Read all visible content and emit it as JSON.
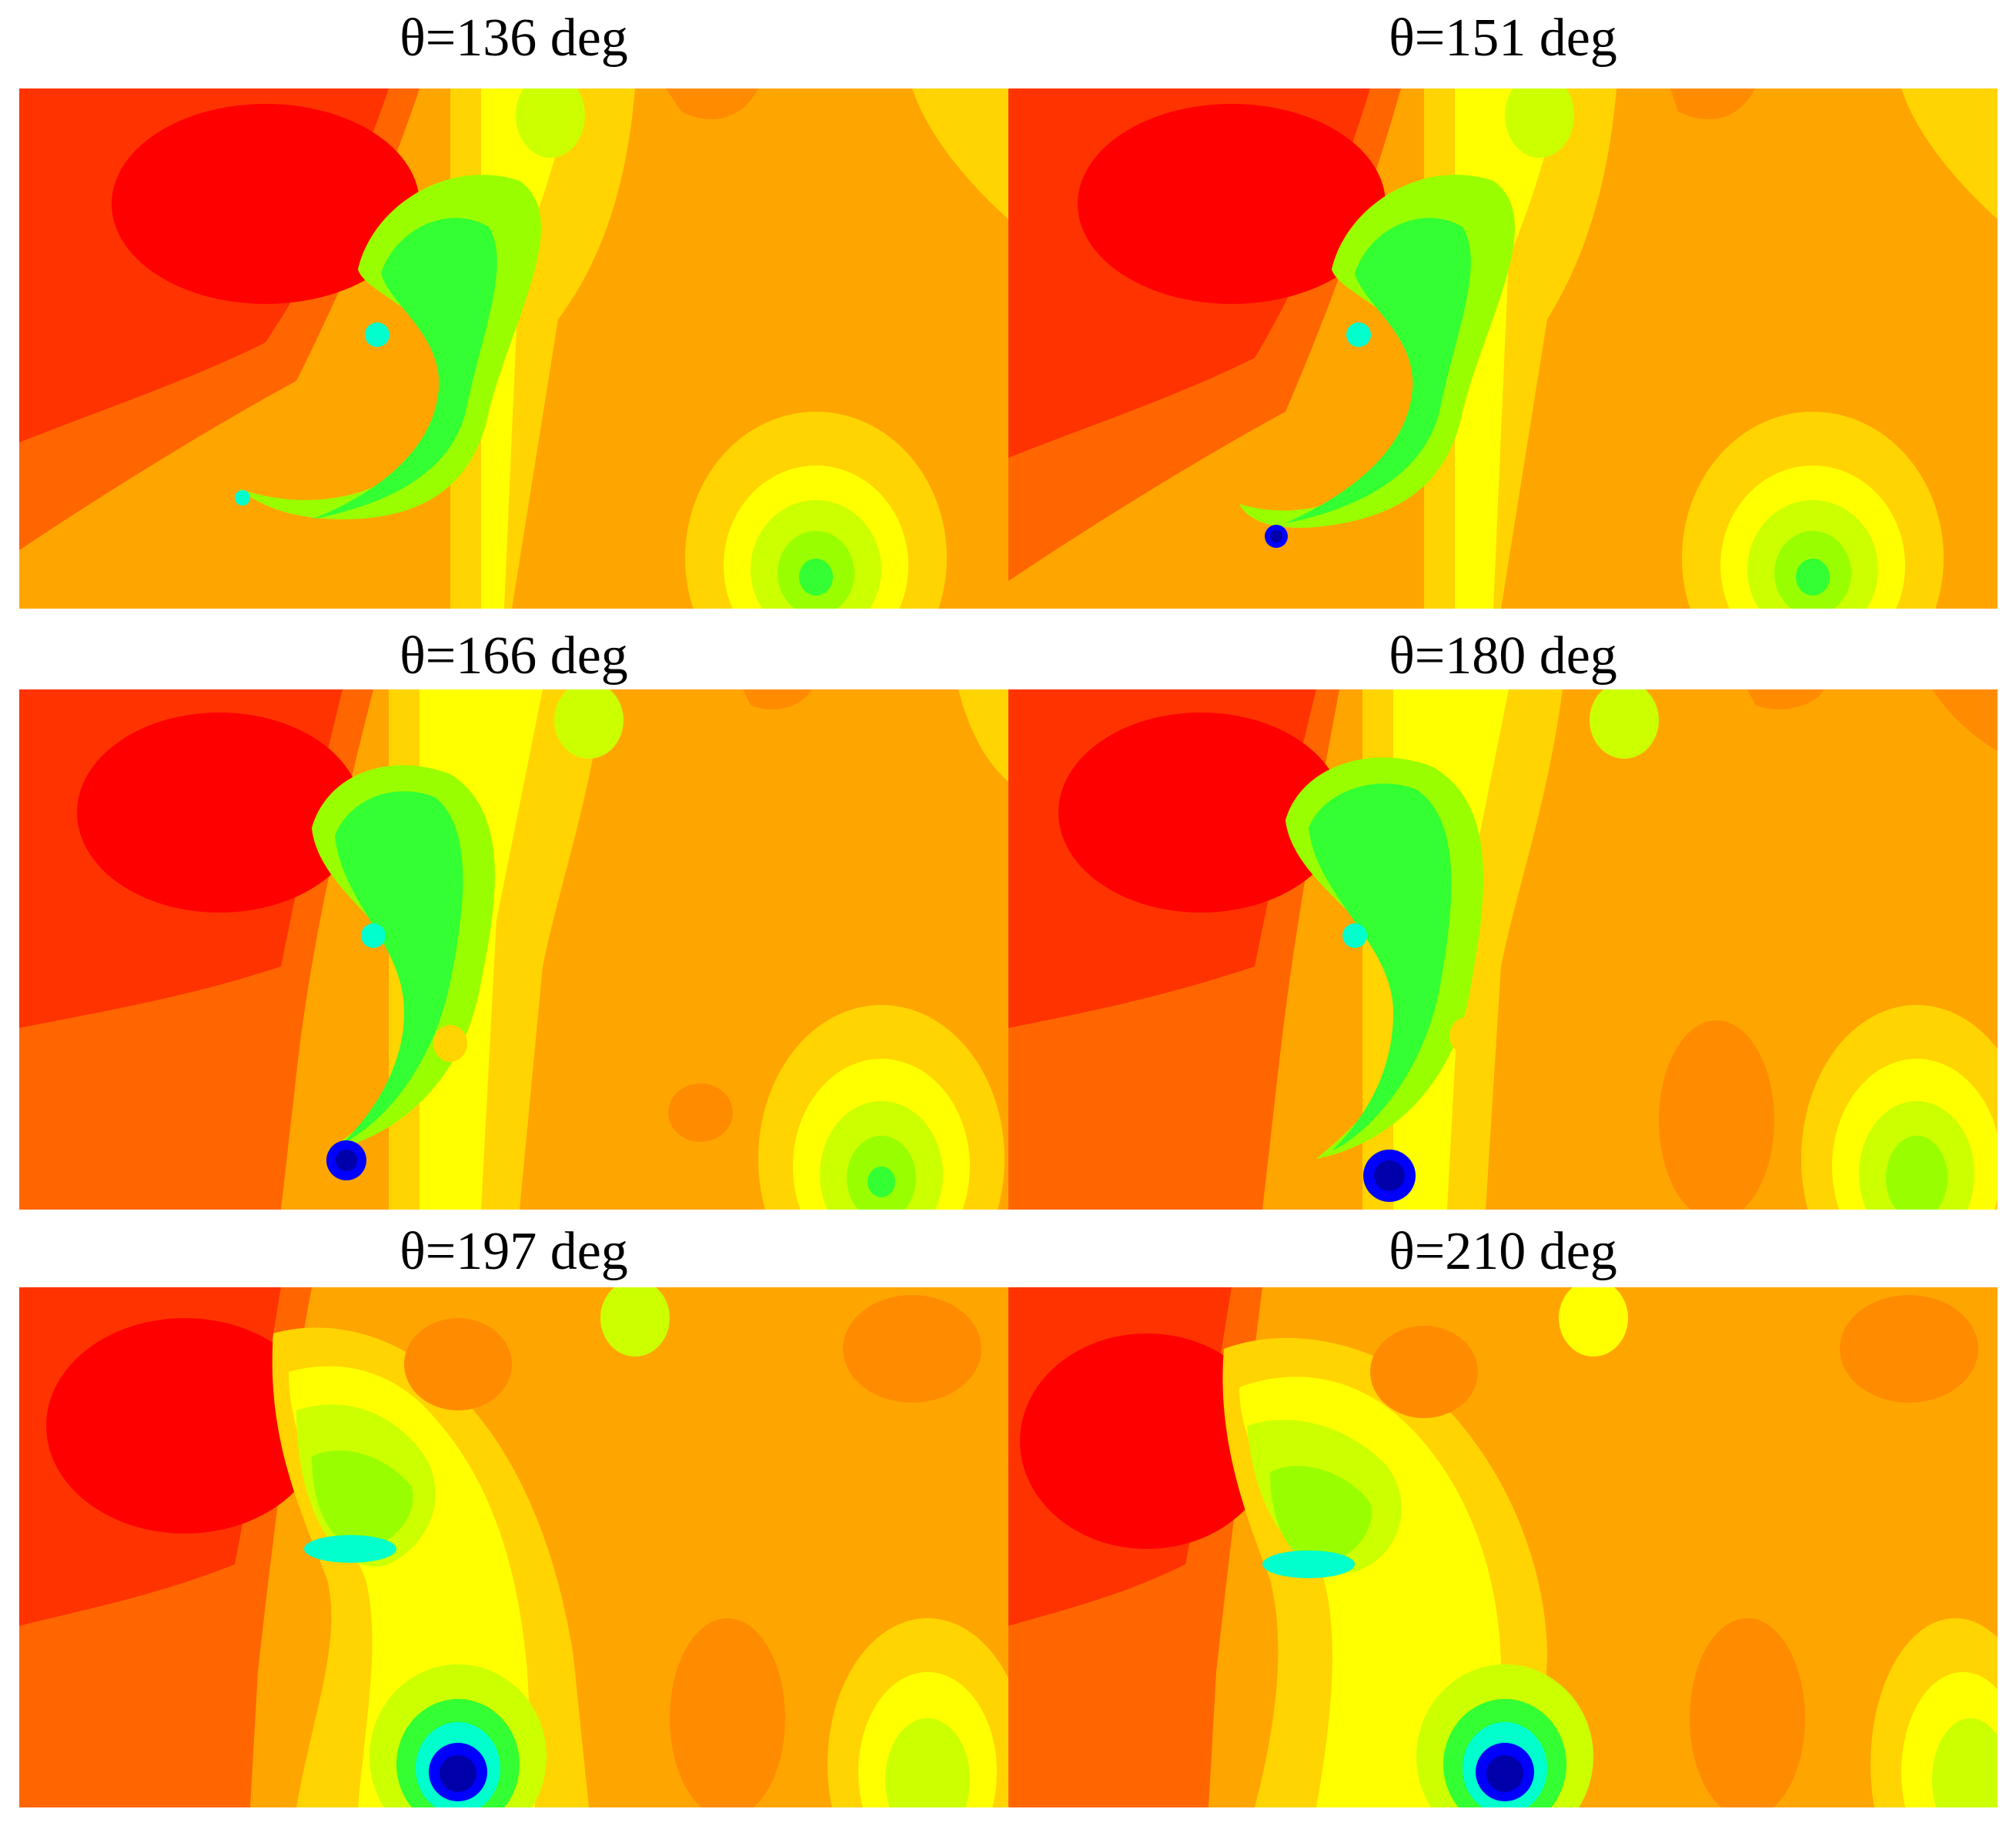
{
  "panels": [
    {
      "title": "θ=136 deg"
    },
    {
      "title": "θ=151 deg"
    },
    {
      "title": "θ=166 deg"
    },
    {
      "title": "θ=180 deg"
    },
    {
      "title": "θ=197 deg"
    },
    {
      "title": "θ=210 deg"
    }
  ],
  "colors": {
    "background_orange": "#ffa500",
    "deep_red": "#ff0000",
    "red_orange": "#ff3300",
    "orange_red": "#ff6600",
    "dark_orange": "#ff8c00",
    "gold": "#ffd400",
    "yellow": "#ffff00",
    "yellow_green": "#ccff00",
    "light_green": "#99ff00",
    "green": "#33ff33",
    "cyan": "#00ffcc",
    "blue": "#0000ff",
    "navy": "#0000aa"
  }
}
